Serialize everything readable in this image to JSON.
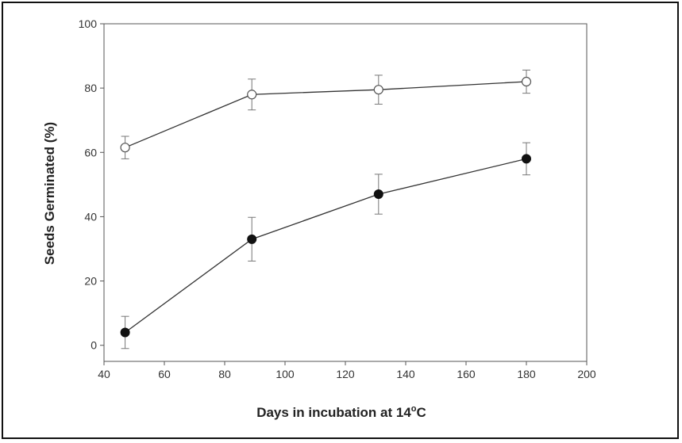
{
  "chart_data": {
    "type": "line",
    "xlabel": "Days in incubation at 14",
    "xlabel_degree": "o",
    "xlabel_unit": "C",
    "ylabel": "Seeds Germinated (%)",
    "xlim": [
      40,
      200
    ],
    "ylim": [
      -5,
      100
    ],
    "xticks": [
      40,
      60,
      80,
      100,
      120,
      140,
      160,
      180,
      200
    ],
    "yticks": [
      0,
      20,
      40,
      60,
      80,
      100
    ],
    "grid": false,
    "series": [
      {
        "marker": "open-circle",
        "color": "#333333",
        "points": [
          {
            "x": 47,
            "y": 61.5,
            "err": 3.5
          },
          {
            "x": 89,
            "y": 78,
            "err": 4.8
          },
          {
            "x": 131,
            "y": 79.5,
            "err": 4.5
          },
          {
            "x": 180,
            "y": 82,
            "err": 3.6
          }
        ]
      },
      {
        "marker": "filled-circle",
        "color": "#111111",
        "points": [
          {
            "x": 47,
            "y": 4,
            "err": 5
          },
          {
            "x": 89,
            "y": 33,
            "err": 6.8
          },
          {
            "x": 131,
            "y": 47,
            "err": 6.2
          },
          {
            "x": 180,
            "y": 58,
            "err": 5
          }
        ]
      }
    ]
  }
}
